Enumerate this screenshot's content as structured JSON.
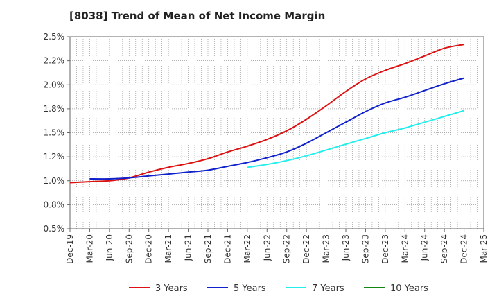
{
  "chart_data": {
    "type": "line",
    "title": "[8038]  Trend of Mean of Net Income Margin",
    "xlabel": "",
    "ylabel": "",
    "x": [
      "Dec-19",
      "Mar-20",
      "Jun-20",
      "Sep-20",
      "Dec-20",
      "Mar-21",
      "Jun-21",
      "Sep-21",
      "Dec-21",
      "Mar-22",
      "Jun-22",
      "Sep-22",
      "Dec-22",
      "Mar-23",
      "Jun-23",
      "Sep-23",
      "Dec-23",
      "Mar-24",
      "Jun-24",
      "Sep-24",
      "Dec-24",
      "Mar-25"
    ],
    "ylim": [
      0.5,
      2.5
    ],
    "yticks": [
      0.5,
      0.75,
      1.0,
      1.25,
      1.5,
      1.75,
      2.0,
      2.25,
      2.5
    ],
    "ytick_labels": [
      "0.5%",
      "0.8%",
      "1.0%",
      "1.2%",
      "1.5%",
      "1.8%",
      "2.0%",
      "2.2%",
      "2.5%"
    ],
    "grid": true,
    "legend_position": "bottom",
    "series": [
      {
        "name": "3 Years",
        "color": "#dd1111",
        "values": [
          0.98,
          0.99,
          1.0,
          1.03,
          1.09,
          1.14,
          1.18,
          1.23,
          1.3,
          1.36,
          1.43,
          1.52,
          1.64,
          1.78,
          1.93,
          2.06,
          2.15,
          2.22,
          2.3,
          2.38,
          2.42,
          null
        ]
      },
      {
        "name": "5 Years",
        "color": "#1122cc",
        "values": [
          null,
          1.02,
          1.02,
          1.03,
          1.05,
          1.07,
          1.09,
          1.11,
          1.15,
          1.19,
          1.24,
          1.3,
          1.39,
          1.5,
          1.61,
          1.72,
          1.81,
          1.87,
          1.94,
          2.01,
          2.07,
          null
        ]
      },
      {
        "name": "7 Years",
        "color": "#22eeee",
        "values": [
          null,
          null,
          null,
          null,
          null,
          null,
          null,
          null,
          null,
          1.14,
          1.17,
          1.21,
          1.26,
          1.32,
          1.38,
          1.44,
          1.5,
          1.55,
          1.61,
          1.67,
          1.73,
          null
        ]
      },
      {
        "name": "10 Years",
        "color": "#118811",
        "values": [
          null,
          null,
          null,
          null,
          null,
          null,
          null,
          null,
          null,
          null,
          null,
          null,
          null,
          null,
          null,
          null,
          null,
          null,
          null,
          null,
          null,
          null
        ]
      }
    ]
  }
}
